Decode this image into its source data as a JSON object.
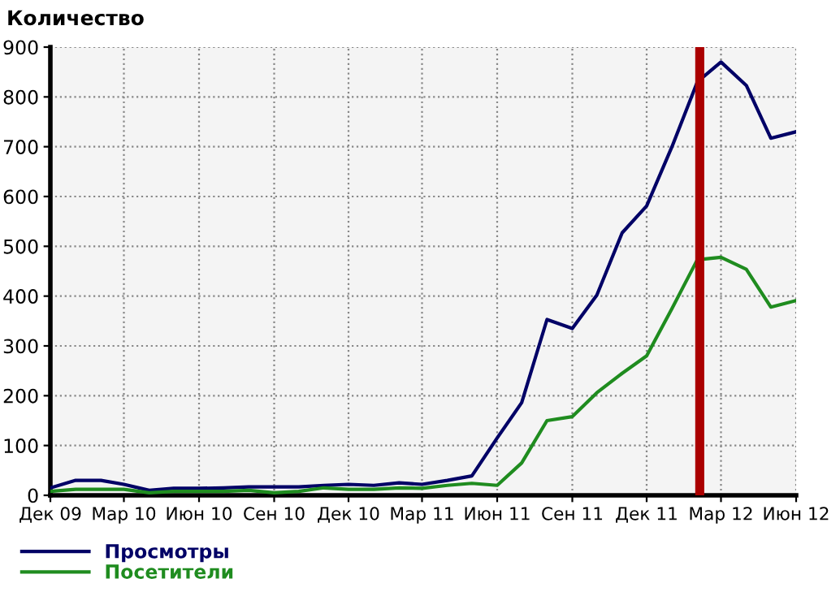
{
  "chart_data": {
    "type": "line",
    "title": "Количество",
    "x": [
      "2009-12",
      "2010-01",
      "2010-02",
      "2010-03",
      "2010-04",
      "2010-05",
      "2010-06",
      "2010-07",
      "2010-08",
      "2010-09",
      "2010-10",
      "2010-11",
      "2010-12",
      "2011-01",
      "2011-02",
      "2011-03",
      "2011-04",
      "2011-05",
      "2011-06",
      "2011-07",
      "2011-08",
      "2011-09",
      "2011-10",
      "2011-11",
      "2011-12",
      "2012-01",
      "2012-02",
      "2012-03",
      "2012-04",
      "2012-05",
      "2012-06"
    ],
    "series": [
      {
        "name": "Просмотры",
        "color": "#000066",
        "values": [
          15,
          30,
          30,
          22,
          10,
          14,
          14,
          15,
          17,
          17,
          17,
          20,
          22,
          20,
          25,
          22,
          30,
          39,
          115,
          186,
          353,
          335,
          402,
          527,
          581,
          700,
          830,
          870,
          823,
          717,
          730
        ]
      },
      {
        "name": "Посетители",
        "color": "#1f8c1f",
        "values": [
          8,
          12,
          12,
          12,
          5,
          8,
          8,
          8,
          10,
          5,
          8,
          15,
          12,
          12,
          15,
          14,
          20,
          24,
          20,
          65,
          150,
          158,
          206,
          245,
          280,
          375,
          473,
          478,
          454,
          378,
          391
        ]
      }
    ],
    "xlim": [
      "2009-12",
      "2012-06"
    ],
    "xticks": [
      {
        "value": "2009-12",
        "label": "Дек 09"
      },
      {
        "value": "2010-03",
        "label": "Мар 10"
      },
      {
        "value": "2010-06",
        "label": "Июн 10"
      },
      {
        "value": "2010-09",
        "label": "Сен 10"
      },
      {
        "value": "2010-12",
        "label": "Дек 10"
      },
      {
        "value": "2011-03",
        "label": "Мар 11"
      },
      {
        "value": "2011-06",
        "label": "Июн 11"
      },
      {
        "value": "2011-09",
        "label": "Сен 11"
      },
      {
        "value": "2011-12",
        "label": "Дек 11"
      },
      {
        "value": "2012-03",
        "label": "Мар 12"
      },
      {
        "value": "2012-06",
        "label": "Июн 12"
      }
    ],
    "ylim": [
      0,
      900
    ],
    "yticks": [
      0,
      100,
      200,
      300,
      400,
      500,
      600,
      700,
      800,
      900
    ],
    "ref_lines": [
      {
        "axis": "x",
        "value": "2012-02-04",
        "color": "#aa0000"
      }
    ],
    "grid": true,
    "legend": "bottom left",
    "marker": "none",
    "line_style": "solid"
  }
}
